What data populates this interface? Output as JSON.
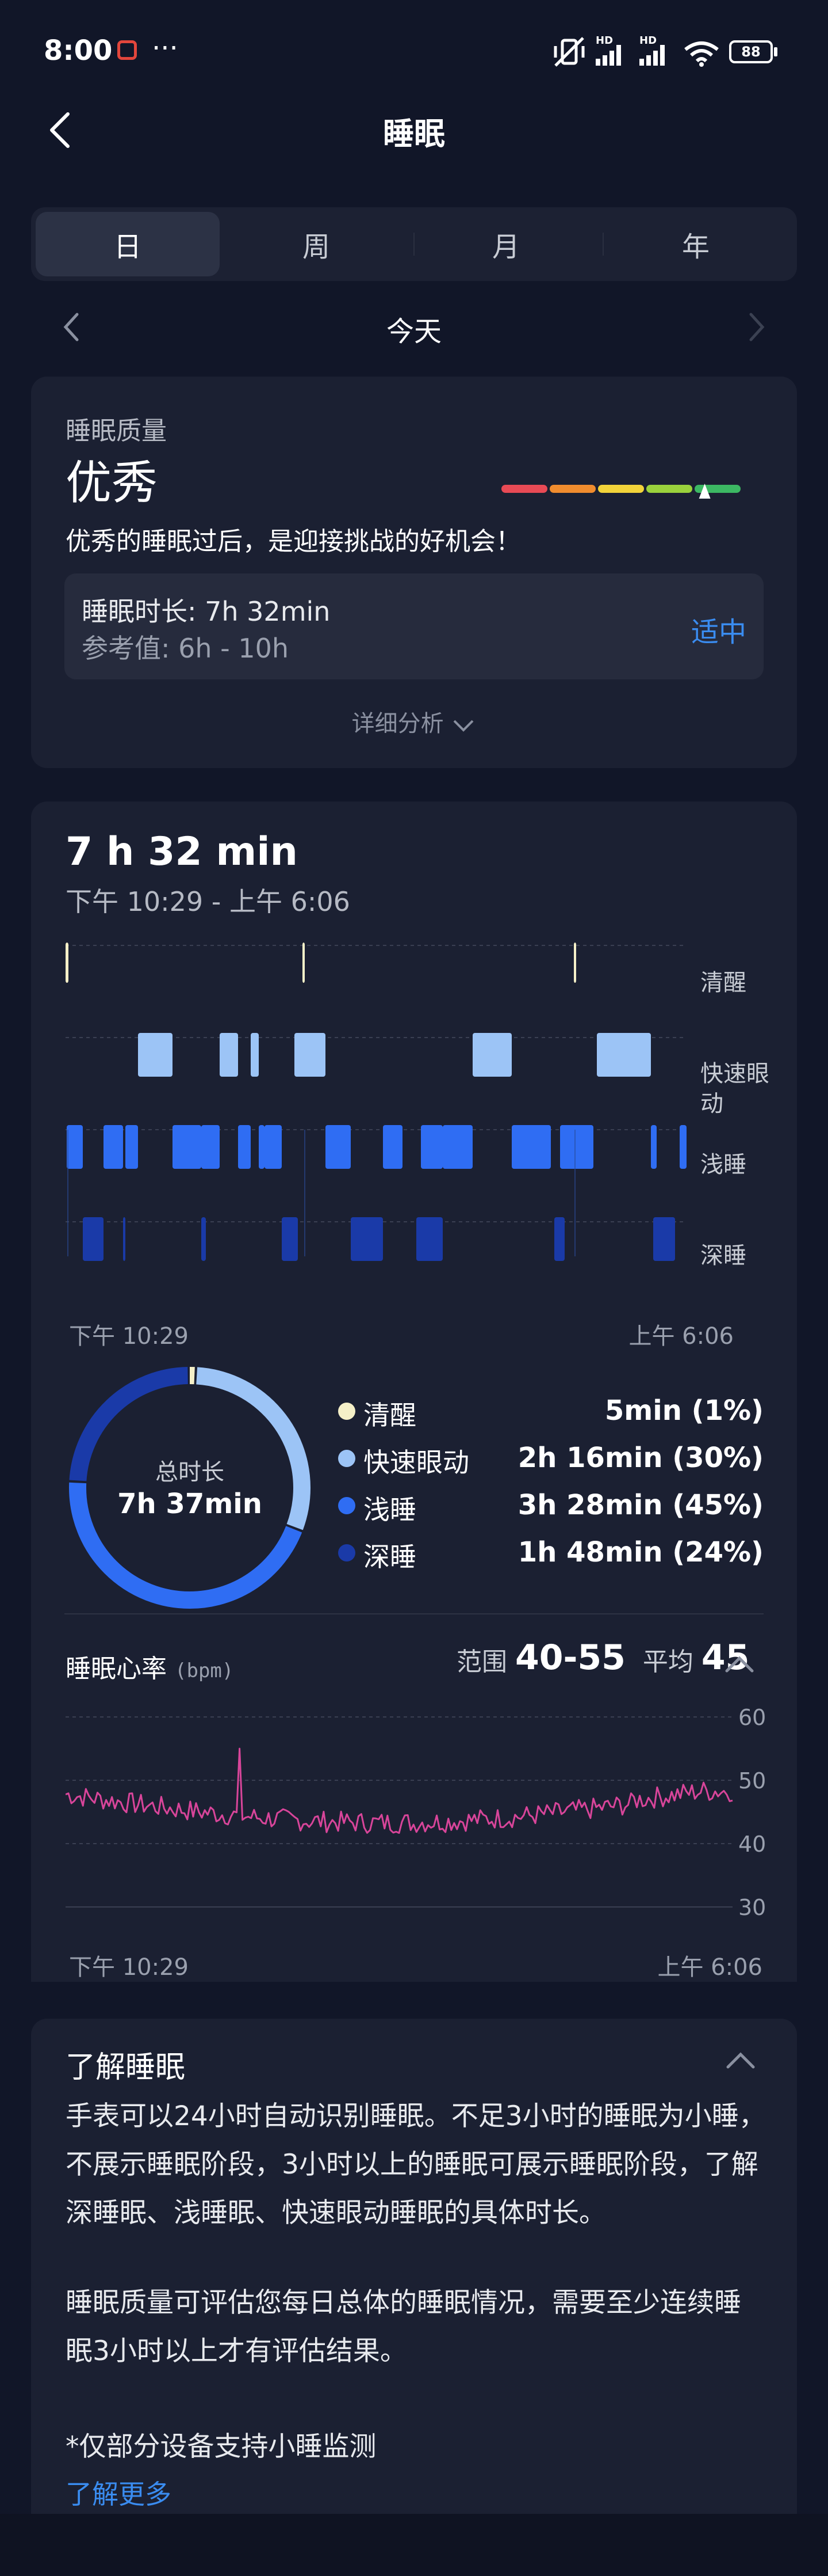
{
  "status": {
    "time": "8:00",
    "battery": "88",
    "net1": "HD",
    "net2": "HD"
  },
  "header": {
    "title": "睡眠",
    "back_icon": "chevron-left-icon"
  },
  "tabs": [
    {
      "label": "日",
      "active": true
    },
    {
      "label": "周"
    },
    {
      "label": "月"
    },
    {
      "label": "年"
    }
  ],
  "date_nav": {
    "label": "今天"
  },
  "quality": {
    "heading": "睡眠质量",
    "rating": "优秀",
    "message": "优秀的睡眠过后，是迎接挑战的好机会！",
    "duration_text": "睡眠时长: 7h 32min",
    "reference_text": "参考值: 6h - 10h",
    "status": "适中",
    "detail_link": "详细分析",
    "scale_colors": [
      "#e84a55",
      "#f08c2e",
      "#f2d33a",
      "#9ad13c",
      "#3cb863"
    ],
    "scale_level": 0.85
  },
  "sleep": {
    "total": "7 h 32 min",
    "range": "下午 10:29 - 上午 6:06",
    "stage_labels": [
      "清醒",
      "快速眼",
      "动",
      "浅睡",
      "深睡"
    ],
    "x_start": "下午 10:29",
    "x_end": "上午 6:06",
    "donut_label": "总时长",
    "donut_total": "7h 37min",
    "legend": [
      {
        "name": "清醒",
        "value": "5min (1%)",
        "color": "#f5f0c8",
        "fraction": 0.01
      },
      {
        "name": "快速眼动",
        "value": "2h 16min (30%)",
        "color": "#9cc4f6",
        "fraction": 0.3
      },
      {
        "name": "浅睡",
        "value": "3h 28min (45%)",
        "color": "#2f6df3",
        "fraction": 0.45
      },
      {
        "name": "深睡",
        "value": "1h 48min (24%)",
        "color": "#1a3aa8",
        "fraction": 0.24
      }
    ]
  },
  "heart": {
    "title": "睡眠心率",
    "unit": "(bpm)",
    "range_label": "范围",
    "range_value": "40-55",
    "avg_label": "平均",
    "avg_value": "45",
    "y_ticks": [
      "60",
      "50",
      "40",
      "30"
    ],
    "x_start": "下午 10:29",
    "x_end": "上午 6:06",
    "line_color": "#d8459a"
  },
  "about": {
    "title": "了解睡眠",
    "p1": "手表可以24小时自动识别睡眠。不足3小时的睡眠为小睡，不展示睡眠阶段，3小时以上的睡眠可展示睡眠阶段，了解深睡眠、浅睡眠、快速眼动睡眠的具体时长。",
    "p2": "睡眠质量可评估您每日总体的睡眠情况，需要至少连续睡眠3小时以上才有评估结果。",
    "note": "*仅部分设备支持小睡监测",
    "more_link": "了解更多"
  }
}
